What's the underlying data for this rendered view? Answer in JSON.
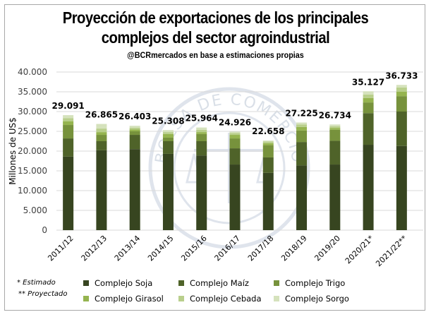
{
  "title_line1": "Proyección de exportaciones de los principales",
  "title_line2": "complejos del sector agroindustrial",
  "subtitle": "@BCRmercados en base a estimaciones propias",
  "watermark_text": "BOLSA DE COMERCIO DE ROSARIO",
  "notes": [
    "* Estimado",
    "** Proyectado"
  ],
  "chart_data": {
    "type": "bar",
    "stacked": true,
    "title": "Proyección de exportaciones de los principales complejos del sector agroindustrial",
    "subtitle": "@BCRmercados en base a estimaciones propias",
    "xlabel": "",
    "ylabel": "Millones de US$",
    "ylim": [
      0,
      40000
    ],
    "yticks": [
      0,
      5000,
      10000,
      15000,
      20000,
      25000,
      30000,
      35000,
      40000
    ],
    "ytick_labels": [
      "0",
      "5.000",
      "10.000",
      "15.000",
      "20.000",
      "25.000",
      "30.000",
      "35.000",
      "40.000"
    ],
    "grid": true,
    "legend_position": "bottom",
    "categories": [
      "2011/12",
      "2012/13",
      "2013/14",
      "2014/15",
      "2015/16",
      "2016/17",
      "2017/18",
      "2018/19",
      "2019/20",
      "2020/21*",
      "2021/22**"
    ],
    "totals": [
      29091,
      26865,
      26403,
      25308,
      25964,
      24926,
      22658,
      27225,
      26734,
      35127,
      36733
    ],
    "total_labels": [
      "29.091",
      "26.865",
      "26.403",
      "25.308",
      "25.964",
      "24.926",
      "22.658",
      "27.225",
      "26.734",
      "35.127",
      "36.733"
    ],
    "series": [
      {
        "name": "Complejo Soja",
        "color": "#374520",
        "values": [
          18600,
          20200,
          20500,
          19300,
          18900,
          16600,
          14500,
          16400,
          16600,
          21600,
          21300
        ]
      },
      {
        "name": "Complejo Maíz",
        "color": "#4f6329",
        "values": [
          4600,
          2300,
          3600,
          3200,
          3600,
          4100,
          3900,
          5900,
          6000,
          8000,
          8700
        ]
      },
      {
        "name": "Complejo Trigo",
        "color": "#77923c",
        "values": [
          3400,
          1600,
          900,
          900,
          1800,
          2500,
          3100,
          2900,
          2800,
          2700,
          3900
        ]
      },
      {
        "name": "Complejo Girasol",
        "color": "#95b44f",
        "values": [
          900,
          700,
          500,
          900,
          500,
          900,
          500,
          900,
          400,
          1100,
          1100
        ]
      },
      {
        "name": "Complejo Cebada",
        "color": "#b9cf8c",
        "values": [
          800,
          900,
          400,
          500,
          600,
          500,
          400,
          600,
          500,
          900,
          1100
        ]
      },
      {
        "name": "Complejo Sorgo",
        "color": "#d5e2bc",
        "values": [
          791,
          1165,
          503,
          508,
          564,
          326,
          258,
          525,
          434,
          827,
          633
        ]
      }
    ]
  }
}
